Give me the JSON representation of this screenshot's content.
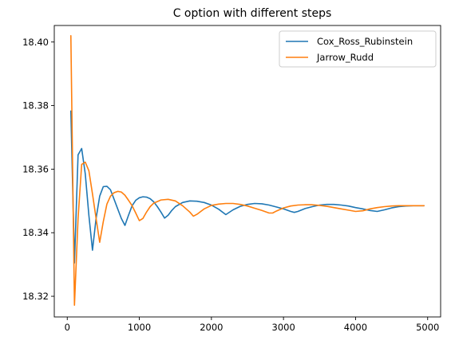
{
  "chart_data": {
    "type": "line",
    "title": "C option with different steps",
    "xlabel": "",
    "ylabel": "",
    "xlim": [
      -180,
      5180
    ],
    "ylim": [
      18.3135,
      18.4052
    ],
    "xticks": [
      0,
      1000,
      2000,
      3000,
      4000,
      5000
    ],
    "xtick_labels": [
      "0",
      "1000",
      "2000",
      "3000",
      "4000",
      "5000"
    ],
    "yticks": [
      18.32,
      18.34,
      18.36,
      18.38,
      18.4
    ],
    "ytick_labels": [
      "18.32",
      "18.34",
      "18.36",
      "18.38",
      "18.40"
    ],
    "grid": false,
    "legend_position": "top-right",
    "series": [
      {
        "name": "Cox_Ross_Rubinstein",
        "color": "#1f77b4",
        "points": [
          [
            50,
            18.3783
          ],
          [
            100,
            18.3305
          ],
          [
            150,
            18.3645
          ],
          [
            200,
            18.3665
          ],
          [
            250,
            18.3585
          ],
          [
            300,
            18.3455
          ],
          [
            350,
            18.3345
          ],
          [
            400,
            18.3445
          ],
          [
            450,
            18.3515
          ],
          [
            500,
            18.3545
          ],
          [
            550,
            18.3546
          ],
          [
            600,
            18.3535
          ],
          [
            650,
            18.3505
          ],
          [
            700,
            18.3475
          ],
          [
            750,
            18.3445
          ],
          [
            800,
            18.3423
          ],
          [
            850,
            18.3455
          ],
          [
            900,
            18.3485
          ],
          [
            950,
            18.3502
          ],
          [
            1000,
            18.351
          ],
          [
            1050,
            18.3513
          ],
          [
            1100,
            18.3512
          ],
          [
            1150,
            18.3507
          ],
          [
            1200,
            18.3497
          ],
          [
            1250,
            18.3482
          ],
          [
            1300,
            18.3465
          ],
          [
            1350,
            18.3446
          ],
          [
            1400,
            18.3455
          ],
          [
            1450,
            18.347
          ],
          [
            1500,
            18.3482
          ],
          [
            1600,
            18.3495
          ],
          [
            1700,
            18.35
          ],
          [
            1800,
            18.3499
          ],
          [
            1900,
            18.3495
          ],
          [
            2000,
            18.3487
          ],
          [
            2100,
            18.3474
          ],
          [
            2200,
            18.3457
          ],
          [
            2300,
            18.3472
          ],
          [
            2400,
            18.3483
          ],
          [
            2500,
            18.3489
          ],
          [
            2600,
            18.3492
          ],
          [
            2700,
            18.3491
          ],
          [
            2800,
            18.3487
          ],
          [
            2900,
            18.3481
          ],
          [
            3000,
            18.3475
          ],
          [
            3100,
            18.3467
          ],
          [
            3150,
            18.3464
          ],
          [
            3200,
            18.3467
          ],
          [
            3300,
            18.3476
          ],
          [
            3400,
            18.3482
          ],
          [
            3500,
            18.3487
          ],
          [
            3600,
            18.3489
          ],
          [
            3700,
            18.3489
          ],
          [
            3800,
            18.3487
          ],
          [
            3900,
            18.3484
          ],
          [
            4000,
            18.3479
          ],
          [
            4100,
            18.3475
          ],
          [
            4200,
            18.347
          ],
          [
            4300,
            18.3467
          ],
          [
            4400,
            18.3472
          ],
          [
            4500,
            18.3478
          ],
          [
            4600,
            18.3482
          ],
          [
            4700,
            18.3484
          ],
          [
            4800,
            18.3485
          ],
          [
            4950,
            18.3485
          ]
        ]
      },
      {
        "name": "Jarrow_Rudd",
        "color": "#ff7f0e",
        "points": [
          [
            50,
            18.402
          ],
          [
            100,
            18.3172
          ],
          [
            150,
            18.3445
          ],
          [
            200,
            18.3615
          ],
          [
            250,
            18.3622
          ],
          [
            300,
            18.3595
          ],
          [
            350,
            18.3522
          ],
          [
            400,
            18.3445
          ],
          [
            450,
            18.337
          ],
          [
            500,
            18.3435
          ],
          [
            550,
            18.349
          ],
          [
            600,
            18.3515
          ],
          [
            650,
            18.3526
          ],
          [
            700,
            18.353
          ],
          [
            750,
            18.3528
          ],
          [
            800,
            18.3518
          ],
          [
            850,
            18.3502
          ],
          [
            900,
            18.3485
          ],
          [
            950,
            18.3462
          ],
          [
            1000,
            18.3438
          ],
          [
            1050,
            18.3445
          ],
          [
            1100,
            18.3465
          ],
          [
            1150,
            18.3482
          ],
          [
            1200,
            18.3493
          ],
          [
            1300,
            18.3503
          ],
          [
            1400,
            18.3505
          ],
          [
            1500,
            18.35
          ],
          [
            1600,
            18.3485
          ],
          [
            1700,
            18.3465
          ],
          [
            1750,
            18.3452
          ],
          [
            1800,
            18.3458
          ],
          [
            1900,
            18.3475
          ],
          [
            2000,
            18.3486
          ],
          [
            2100,
            18.349
          ],
          [
            2200,
            18.3492
          ],
          [
            2300,
            18.3492
          ],
          [
            2400,
            18.3489
          ],
          [
            2500,
            18.3484
          ],
          [
            2600,
            18.3477
          ],
          [
            2700,
            18.347
          ],
          [
            2800,
            18.3462
          ],
          [
            2850,
            18.3462
          ],
          [
            2900,
            18.3468
          ],
          [
            3000,
            18.3478
          ],
          [
            3100,
            18.3484
          ],
          [
            3200,
            18.3487
          ],
          [
            3300,
            18.3488
          ],
          [
            3400,
            18.3488
          ],
          [
            3500,
            18.3486
          ],
          [
            3600,
            18.3483
          ],
          [
            3700,
            18.3479
          ],
          [
            3800,
            18.3475
          ],
          [
            3900,
            18.3471
          ],
          [
            4000,
            18.3467
          ],
          [
            4100,
            18.3469
          ],
          [
            4200,
            18.3475
          ],
          [
            4300,
            18.3479
          ],
          [
            4400,
            18.3482
          ],
          [
            4500,
            18.3484
          ],
          [
            4600,
            18.3485
          ],
          [
            4700,
            18.3485
          ],
          [
            4800,
            18.3485
          ],
          [
            4950,
            18.3485
          ]
        ]
      }
    ]
  }
}
